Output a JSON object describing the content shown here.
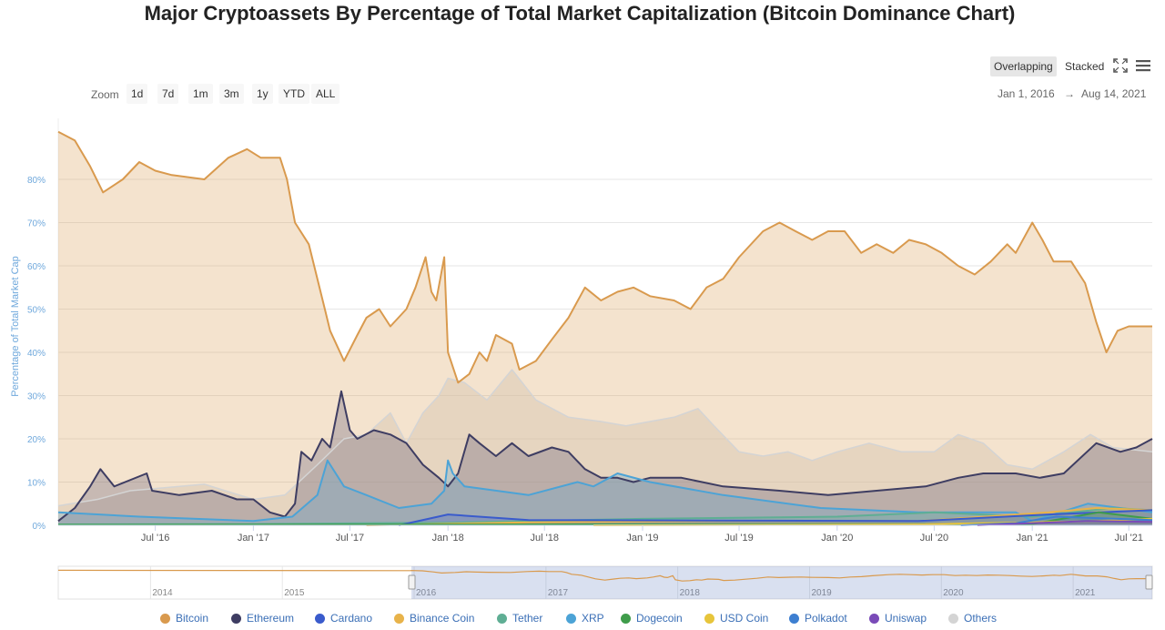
{
  "title": "Major Cryptoassets By Percentage of Total Market Capitalization (Bitcoin Dominance Chart)",
  "mode_buttons": {
    "overlapping": "Overlapping",
    "stacked": "Stacked"
  },
  "icons": {
    "fullscreen": "fullscreen-icon",
    "menu": "menu-icon"
  },
  "zoom": {
    "label": "Zoom",
    "buttons": [
      "1d",
      "7d",
      "1m",
      "3m",
      "1y",
      "YTD",
      "ALL"
    ]
  },
  "range": {
    "from": "Jan 1, 2016",
    "arrow": "→",
    "to": "Aug 14, 2021"
  },
  "colors": {
    "bitcoin": "#d99a4e",
    "ethereum": "#3e3d62",
    "cardano": "#3a5bcc",
    "binance": "#e8b34a",
    "tether": "#5fae94",
    "xrp": "#4ca3d6",
    "dogecoin": "#3f9c4b",
    "usdcoin": "#e7c53b",
    "polkadot": "#3d7fd1",
    "uniswap": "#7a4bb8",
    "others": "#d4d4d4"
  },
  "chart_data": {
    "type": "area",
    "ylabel": "Percentage of Total Market Cap",
    "y_ticks": [
      "0%",
      "10%",
      "20%",
      "30%",
      "40%",
      "50%",
      "60%",
      "70%",
      "80%"
    ],
    "ylim": [
      0,
      92
    ],
    "x_ticks": [
      "Jul '16",
      "Jan '17",
      "Jul '17",
      "Jan '18",
      "Jul '18",
      "Jan '19",
      "Jul '19",
      "Jan '20",
      "Jul '20",
      "Jan '21",
      "Jul '21"
    ],
    "x_tick_dates": [
      "2016-07-01",
      "2017-01-01",
      "2017-07-01",
      "2018-01-01",
      "2018-07-01",
      "2019-01-01",
      "2019-07-01",
      "2020-01-01",
      "2020-07-01",
      "2021-01-01",
      "2021-07-01"
    ],
    "xlim": [
      "2016-01-01",
      "2021-08-14"
    ],
    "grid": true,
    "legend": "bottom",
    "series": [
      {
        "key": "others",
        "name": "Others",
        "points": [
          [
            "2016-01-01",
            4.5
          ],
          [
            "2016-03-15",
            6
          ],
          [
            "2016-05-15",
            8
          ],
          [
            "2016-07-01",
            8.5
          ],
          [
            "2016-10-01",
            9.5
          ],
          [
            "2017-01-01",
            6
          ],
          [
            "2017-03-01",
            7
          ],
          [
            "2017-05-01",
            14
          ],
          [
            "2017-06-20",
            20
          ],
          [
            "2017-08-01",
            21
          ],
          [
            "2017-09-15",
            26
          ],
          [
            "2017-10-15",
            19
          ],
          [
            "2017-11-15",
            26
          ],
          [
            "2017-12-15",
            30
          ],
          [
            "2018-01-01",
            34
          ],
          [
            "2018-02-01",
            33
          ],
          [
            "2018-03-15",
            29
          ],
          [
            "2018-05-01",
            36
          ],
          [
            "2018-06-15",
            29
          ],
          [
            "2018-08-15",
            25
          ],
          [
            "2018-10-15",
            24
          ],
          [
            "2018-12-01",
            23
          ],
          [
            "2019-01-15",
            24
          ],
          [
            "2019-03-01",
            25
          ],
          [
            "2019-04-15",
            27
          ],
          [
            "2019-05-15",
            23
          ],
          [
            "2019-07-01",
            17
          ],
          [
            "2019-08-15",
            16
          ],
          [
            "2019-10-01",
            17
          ],
          [
            "2019-11-15",
            15
          ],
          [
            "2020-01-01",
            17
          ],
          [
            "2020-03-01",
            19
          ],
          [
            "2020-05-01",
            17
          ],
          [
            "2020-07-01",
            17
          ],
          [
            "2020-08-15",
            21
          ],
          [
            "2020-10-01",
            19
          ],
          [
            "2020-11-15",
            14
          ],
          [
            "2021-01-01",
            13
          ],
          [
            "2021-03-01",
            17
          ],
          [
            "2021-04-20",
            21
          ],
          [
            "2021-06-01",
            18
          ],
          [
            "2021-08-14",
            17
          ]
        ]
      },
      {
        "key": "bitcoin",
        "name": "Bitcoin",
        "points": [
          [
            "2016-01-01",
            91
          ],
          [
            "2016-02-01",
            89
          ],
          [
            "2016-03-01",
            83
          ],
          [
            "2016-03-25",
            77
          ],
          [
            "2016-05-01",
            80
          ],
          [
            "2016-06-01",
            84
          ],
          [
            "2016-07-01",
            82
          ],
          [
            "2016-08-01",
            81
          ],
          [
            "2016-10-01",
            80
          ],
          [
            "2016-11-15",
            85
          ],
          [
            "2016-12-20",
            87
          ],
          [
            "2017-01-15",
            85
          ],
          [
            "2017-02-20",
            85
          ],
          [
            "2017-03-05",
            80
          ],
          [
            "2017-03-20",
            70
          ],
          [
            "2017-04-15",
            65
          ],
          [
            "2017-05-15",
            50
          ],
          [
            "2017-05-25",
            45
          ],
          [
            "2017-06-20",
            38
          ],
          [
            "2017-07-15",
            44
          ],
          [
            "2017-08-01",
            48
          ],
          [
            "2017-08-25",
            50
          ],
          [
            "2017-09-15",
            46
          ],
          [
            "2017-10-15",
            50
          ],
          [
            "2017-11-01",
            55
          ],
          [
            "2017-11-20",
            62
          ],
          [
            "2017-12-01",
            54
          ],
          [
            "2017-12-10",
            52
          ],
          [
            "2017-12-25",
            62
          ],
          [
            "2018-01-01",
            40
          ],
          [
            "2018-01-20",
            33
          ],
          [
            "2018-02-10",
            35
          ],
          [
            "2018-03-01",
            40
          ],
          [
            "2018-03-15",
            38
          ],
          [
            "2018-04-01",
            44
          ],
          [
            "2018-05-01",
            42
          ],
          [
            "2018-05-15",
            36
          ],
          [
            "2018-06-15",
            38
          ],
          [
            "2018-07-15",
            43
          ],
          [
            "2018-08-15",
            48
          ],
          [
            "2018-09-15",
            55
          ],
          [
            "2018-10-15",
            52
          ],
          [
            "2018-11-15",
            54
          ],
          [
            "2018-12-15",
            55
          ],
          [
            "2019-01-15",
            53
          ],
          [
            "2019-03-01",
            52
          ],
          [
            "2019-04-01",
            50
          ],
          [
            "2019-05-01",
            55
          ],
          [
            "2019-06-01",
            57
          ],
          [
            "2019-07-01",
            62
          ],
          [
            "2019-08-15",
            68
          ],
          [
            "2019-09-15",
            70
          ],
          [
            "2019-10-15",
            68
          ],
          [
            "2019-11-15",
            66
          ],
          [
            "2019-12-15",
            68
          ],
          [
            "2020-01-15",
            68
          ],
          [
            "2020-02-15",
            63
          ],
          [
            "2020-03-15",
            65
          ],
          [
            "2020-04-15",
            63
          ],
          [
            "2020-05-15",
            66
          ],
          [
            "2020-06-15",
            65
          ],
          [
            "2020-07-15",
            63
          ],
          [
            "2020-08-15",
            60
          ],
          [
            "2020-09-15",
            58
          ],
          [
            "2020-10-15",
            61
          ],
          [
            "2020-11-15",
            65
          ],
          [
            "2020-12-01",
            63
          ],
          [
            "2021-01-01",
            70
          ],
          [
            "2021-01-20",
            66
          ],
          [
            "2021-02-10",
            61
          ],
          [
            "2021-03-15",
            61
          ],
          [
            "2021-04-10",
            56
          ],
          [
            "2021-05-01",
            47
          ],
          [
            "2021-05-20",
            40
          ],
          [
            "2021-06-10",
            45
          ],
          [
            "2021-07-01",
            46
          ],
          [
            "2021-07-25",
            46
          ],
          [
            "2021-08-14",
            46
          ]
        ]
      },
      {
        "key": "ethereum",
        "name": "Ethereum",
        "points": [
          [
            "2016-01-01",
            1
          ],
          [
            "2016-02-01",
            4
          ],
          [
            "2016-03-01",
            9
          ],
          [
            "2016-03-20",
            13
          ],
          [
            "2016-04-15",
            9
          ],
          [
            "2016-06-15",
            12
          ],
          [
            "2016-06-25",
            8
          ],
          [
            "2016-08-15",
            7
          ],
          [
            "2016-10-15",
            8
          ],
          [
            "2016-12-01",
            6
          ],
          [
            "2017-01-01",
            6
          ],
          [
            "2017-02-01",
            3
          ],
          [
            "2017-03-01",
            2
          ],
          [
            "2017-03-20",
            5
          ],
          [
            "2017-04-01",
            17
          ],
          [
            "2017-04-20",
            15
          ],
          [
            "2017-05-10",
            20
          ],
          [
            "2017-05-25",
            18
          ],
          [
            "2017-06-15",
            31
          ],
          [
            "2017-07-01",
            22
          ],
          [
            "2017-07-15",
            20
          ],
          [
            "2017-08-15",
            22
          ],
          [
            "2017-09-15",
            21
          ],
          [
            "2017-10-15",
            19
          ],
          [
            "2017-11-15",
            14
          ],
          [
            "2017-12-15",
            11
          ],
          [
            "2018-01-01",
            9
          ],
          [
            "2018-01-20",
            12
          ],
          [
            "2018-02-10",
            21
          ],
          [
            "2018-03-01",
            19
          ],
          [
            "2018-04-01",
            16
          ],
          [
            "2018-05-01",
            19
          ],
          [
            "2018-06-01",
            16
          ],
          [
            "2018-07-15",
            18
          ],
          [
            "2018-08-15",
            17
          ],
          [
            "2018-09-15",
            13
          ],
          [
            "2018-10-15",
            11
          ],
          [
            "2018-11-15",
            11
          ],
          [
            "2018-12-15",
            10
          ],
          [
            "2019-01-15",
            11
          ],
          [
            "2019-03-15",
            11
          ],
          [
            "2019-06-01",
            9
          ],
          [
            "2019-09-15",
            8
          ],
          [
            "2019-12-15",
            7
          ],
          [
            "2020-03-15",
            8
          ],
          [
            "2020-06-15",
            9
          ],
          [
            "2020-08-15",
            11
          ],
          [
            "2020-10-01",
            12
          ],
          [
            "2020-12-01",
            12
          ],
          [
            "2021-01-15",
            11
          ],
          [
            "2021-03-01",
            12
          ],
          [
            "2021-05-01",
            19
          ],
          [
            "2021-06-15",
            17
          ],
          [
            "2021-07-15",
            18
          ],
          [
            "2021-08-14",
            20
          ]
        ]
      },
      {
        "key": "xrp",
        "name": "XRP",
        "points": [
          [
            "2016-01-01",
            3
          ],
          [
            "2016-06-01",
            2
          ],
          [
            "2017-01-01",
            1
          ],
          [
            "2017-03-15",
            2
          ],
          [
            "2017-05-01",
            7
          ],
          [
            "2017-05-20",
            15
          ],
          [
            "2017-06-20",
            9
          ],
          [
            "2017-08-01",
            7
          ],
          [
            "2017-10-01",
            4
          ],
          [
            "2017-12-01",
            5
          ],
          [
            "2017-12-25",
            8
          ],
          [
            "2018-01-01",
            15
          ],
          [
            "2018-01-10",
            12
          ],
          [
            "2018-02-01",
            9
          ],
          [
            "2018-06-01",
            7
          ],
          [
            "2018-09-01",
            10
          ],
          [
            "2018-10-01",
            9
          ],
          [
            "2018-11-15",
            12
          ],
          [
            "2019-01-15",
            10
          ],
          [
            "2019-06-01",
            7
          ],
          [
            "2019-12-01",
            4
          ],
          [
            "2020-06-01",
            3
          ],
          [
            "2020-12-01",
            3
          ],
          [
            "2021-01-01",
            1
          ],
          [
            "2021-04-15",
            5
          ],
          [
            "2021-08-14",
            3
          ]
        ]
      },
      {
        "key": "tether",
        "name": "Tether",
        "points": [
          [
            "2016-01-01",
            0.2
          ],
          [
            "2017-01-01",
            0.3
          ],
          [
            "2018-01-01",
            0.6
          ],
          [
            "2019-01-01",
            1.5
          ],
          [
            "2020-01-01",
            2
          ],
          [
            "2020-07-01",
            3
          ],
          [
            "2021-01-01",
            2
          ],
          [
            "2021-06-01",
            4
          ],
          [
            "2021-08-14",
            3.5
          ]
        ]
      },
      {
        "key": "binance",
        "name": "Binance Coin",
        "points": [
          [
            "2017-08-01",
            0
          ],
          [
            "2018-06-01",
            0.7
          ],
          [
            "2019-06-01",
            1
          ],
          [
            "2020-06-01",
            1
          ],
          [
            "2021-02-01",
            3
          ],
          [
            "2021-05-01",
            4
          ],
          [
            "2021-08-14",
            3.5
          ]
        ]
      },
      {
        "key": "cardano",
        "name": "Cardano",
        "points": [
          [
            "2017-10-01",
            0
          ],
          [
            "2018-01-01",
            2.5
          ],
          [
            "2018-06-01",
            1.2
          ],
          [
            "2020-06-01",
            1
          ],
          [
            "2021-02-01",
            2.5
          ],
          [
            "2021-08-14",
            3.5
          ]
        ]
      },
      {
        "key": "dogecoin",
        "name": "Dogecoin",
        "points": [
          [
            "2016-01-01",
            0.1
          ],
          [
            "2021-01-01",
            0.3
          ],
          [
            "2021-05-05",
            3
          ],
          [
            "2021-08-14",
            1.5
          ]
        ]
      },
      {
        "key": "usdcoin",
        "name": "USD Coin",
        "points": [
          [
            "2018-10-01",
            0
          ],
          [
            "2020-06-01",
            0.2
          ],
          [
            "2021-05-01",
            1
          ],
          [
            "2021-08-14",
            1.5
          ]
        ]
      },
      {
        "key": "polkadot",
        "name": "Polkadot",
        "points": [
          [
            "2020-08-20",
            0
          ],
          [
            "2020-12-01",
            0.5
          ],
          [
            "2021-02-15",
            2
          ],
          [
            "2021-08-14",
            1.2
          ]
        ]
      },
      {
        "key": "uniswap",
        "name": "Uniswap",
        "points": [
          [
            "2020-09-20",
            0
          ],
          [
            "2021-04-15",
            1
          ],
          [
            "2021-08-14",
            0.8
          ]
        ]
      }
    ],
    "navigator": {
      "labels": [
        "2014",
        "2015",
        "2016",
        "2017",
        "2018",
        "2019",
        "2020",
        "2021"
      ]
    }
  }
}
